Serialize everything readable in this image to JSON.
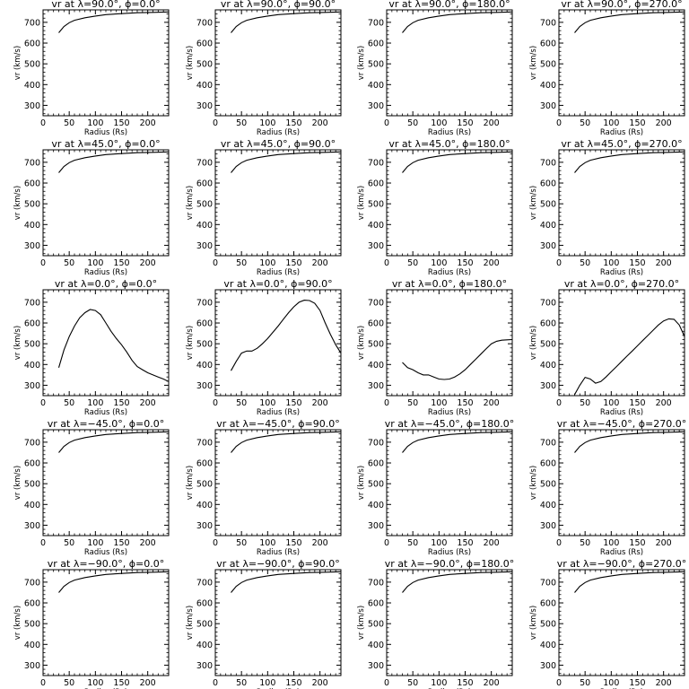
{
  "chart_data": [
    {
      "type": "line",
      "row": 0,
      "col": 0,
      "title": "vr at λ=90.0°, ϕ=0.0°",
      "xlabel": "Radius (Rs)",
      "ylabel": "vr (km/s)",
      "xlim": [
        0,
        240
      ],
      "ylim": [
        250,
        760
      ],
      "xticks": [
        0,
        50,
        100,
        150,
        200
      ],
      "yticks": [
        300,
        400,
        500,
        600,
        700
      ],
      "x": [
        30,
        40,
        50,
        60,
        80,
        100,
        120,
        150,
        180,
        210,
        240
      ],
      "y": [
        650,
        680,
        698,
        710,
        722,
        730,
        737,
        742,
        746,
        748,
        750
      ]
    },
    {
      "type": "line",
      "row": 0,
      "col": 1,
      "title": "vr at λ=90.0°, ϕ=90.0°",
      "xlabel": "Radius (Rs)",
      "ylabel": "vr (km/s)",
      "xlim": [
        0,
        240
      ],
      "ylim": [
        250,
        760
      ],
      "xticks": [
        0,
        50,
        100,
        150,
        200
      ],
      "yticks": [
        300,
        400,
        500,
        600,
        700
      ],
      "x": [
        30,
        40,
        50,
        60,
        80,
        100,
        120,
        150,
        180,
        210,
        240
      ],
      "y": [
        650,
        680,
        698,
        710,
        722,
        730,
        737,
        742,
        746,
        748,
        750
      ]
    },
    {
      "type": "line",
      "row": 0,
      "col": 2,
      "title": "vr at λ=90.0°, ϕ=180.0°",
      "xlabel": "Radius (Rs)",
      "ylabel": "vr (km/s)",
      "xlim": [
        0,
        240
      ],
      "ylim": [
        250,
        760
      ],
      "xticks": [
        0,
        50,
        100,
        150,
        200
      ],
      "yticks": [
        300,
        400,
        500,
        600,
        700
      ],
      "x": [
        30,
        40,
        50,
        60,
        80,
        100,
        120,
        150,
        180,
        210,
        240
      ],
      "y": [
        650,
        680,
        698,
        710,
        722,
        730,
        737,
        742,
        746,
        748,
        750
      ]
    },
    {
      "type": "line",
      "row": 0,
      "col": 3,
      "title": "vr at λ=90.0°, ϕ=270.0°",
      "xlabel": "Radius (Rs)",
      "ylabel": "vr (km/s)",
      "xlim": [
        0,
        240
      ],
      "ylim": [
        250,
        760
      ],
      "xticks": [
        0,
        50,
        100,
        150,
        200
      ],
      "yticks": [
        300,
        400,
        500,
        600,
        700
      ],
      "x": [
        30,
        40,
        50,
        60,
        80,
        100,
        120,
        150,
        180,
        210,
        240
      ],
      "y": [
        650,
        680,
        698,
        710,
        722,
        730,
        737,
        742,
        746,
        748,
        750
      ]
    },
    {
      "type": "line",
      "row": 1,
      "col": 0,
      "title": "vr at λ=45.0°, ϕ=0.0°",
      "xlabel": "Radius (Rs)",
      "ylabel": "vr (km/s)",
      "xlim": [
        0,
        240
      ],
      "ylim": [
        250,
        760
      ],
      "xticks": [
        0,
        50,
        100,
        150,
        200
      ],
      "yticks": [
        300,
        400,
        500,
        600,
        700
      ],
      "x": [
        30,
        40,
        50,
        60,
        80,
        100,
        120,
        150,
        180,
        210,
        240
      ],
      "y": [
        650,
        680,
        698,
        710,
        722,
        730,
        737,
        742,
        746,
        748,
        750
      ]
    },
    {
      "type": "line",
      "row": 1,
      "col": 1,
      "title": "vr at λ=45.0°, ϕ=90.0°",
      "xlabel": "Radius (Rs)",
      "ylabel": "vr (km/s)",
      "xlim": [
        0,
        240
      ],
      "ylim": [
        250,
        760
      ],
      "xticks": [
        0,
        50,
        100,
        150,
        200
      ],
      "yticks": [
        300,
        400,
        500,
        600,
        700
      ],
      "x": [
        30,
        40,
        50,
        60,
        80,
        100,
        120,
        150,
        180,
        210,
        240
      ],
      "y": [
        650,
        680,
        698,
        710,
        722,
        730,
        737,
        742,
        746,
        748,
        750
      ]
    },
    {
      "type": "line",
      "row": 1,
      "col": 2,
      "title": "vr at λ=45.0°, ϕ=180.0°",
      "xlabel": "Radius (Rs)",
      "ylabel": "vr (km/s)",
      "xlim": [
        0,
        240
      ],
      "ylim": [
        250,
        760
      ],
      "xticks": [
        0,
        50,
        100,
        150,
        200
      ],
      "yticks": [
        300,
        400,
        500,
        600,
        700
      ],
      "x": [
        30,
        40,
        50,
        60,
        80,
        100,
        120,
        150,
        180,
        210,
        240
      ],
      "y": [
        650,
        680,
        698,
        710,
        722,
        730,
        737,
        742,
        746,
        748,
        750
      ]
    },
    {
      "type": "line",
      "row": 1,
      "col": 3,
      "title": "vr at λ=45.0°, ϕ=270.0°",
      "xlabel": "Radius (Rs)",
      "ylabel": "vr (km/s)",
      "xlim": [
        0,
        240
      ],
      "ylim": [
        250,
        760
      ],
      "xticks": [
        0,
        50,
        100,
        150,
        200
      ],
      "yticks": [
        300,
        400,
        500,
        600,
        700
      ],
      "x": [
        30,
        40,
        50,
        60,
        80,
        100,
        120,
        150,
        180,
        210,
        240
      ],
      "y": [
        650,
        680,
        698,
        710,
        722,
        730,
        737,
        742,
        746,
        748,
        750
      ]
    },
    {
      "type": "line",
      "row": 2,
      "col": 0,
      "title": "vr at λ=0.0°, ϕ=0.0°",
      "xlabel": "Radius (Rs)",
      "ylabel": "vr (km/s)",
      "xlim": [
        0,
        240
      ],
      "ylim": [
        250,
        760
      ],
      "xticks": [
        0,
        50,
        100,
        150,
        200
      ],
      "yticks": [
        300,
        400,
        500,
        600,
        700
      ],
      "x": [
        30,
        40,
        50,
        60,
        70,
        80,
        90,
        100,
        110,
        120,
        130,
        140,
        150,
        160,
        170,
        180,
        190,
        200,
        210,
        220,
        230,
        240
      ],
      "y": [
        385,
        470,
        535,
        585,
        625,
        650,
        665,
        660,
        640,
        600,
        560,
        525,
        495,
        460,
        420,
        390,
        375,
        360,
        350,
        340,
        330,
        318
      ]
    },
    {
      "type": "line",
      "row": 2,
      "col": 1,
      "title": "vr at λ=0.0°, ϕ=90.0°",
      "xlabel": "Radius (Rs)",
      "ylabel": "vr (km/s)",
      "xlim": [
        0,
        240
      ],
      "ylim": [
        250,
        760
      ],
      "xticks": [
        0,
        50,
        100,
        150,
        200
      ],
      "yticks": [
        300,
        400,
        500,
        600,
        700
      ],
      "x": [
        30,
        40,
        50,
        60,
        70,
        80,
        90,
        100,
        110,
        120,
        130,
        140,
        150,
        160,
        170,
        180,
        190,
        200,
        210,
        220,
        230,
        240
      ],
      "y": [
        370,
        415,
        455,
        465,
        465,
        478,
        500,
        525,
        555,
        585,
        618,
        650,
        678,
        700,
        710,
        708,
        695,
        660,
        600,
        545,
        495,
        455
      ]
    },
    {
      "type": "line",
      "row": 2,
      "col": 2,
      "title": "vr at λ=0.0°, ϕ=180.0°",
      "xlabel": "Radius (Rs)",
      "ylabel": "vr (km/s)",
      "xlim": [
        0,
        240
      ],
      "ylim": [
        250,
        760
      ],
      "xticks": [
        0,
        50,
        100,
        150,
        200
      ],
      "yticks": [
        300,
        400,
        500,
        600,
        700
      ],
      "x": [
        30,
        40,
        50,
        60,
        70,
        80,
        90,
        100,
        110,
        120,
        130,
        140,
        150,
        160,
        170,
        180,
        190,
        200,
        210,
        220,
        230,
        240
      ],
      "y": [
        410,
        385,
        375,
        360,
        350,
        350,
        340,
        330,
        328,
        330,
        340,
        355,
        375,
        400,
        425,
        450,
        475,
        500,
        512,
        517,
        519,
        520
      ]
    },
    {
      "type": "line",
      "row": 2,
      "col": 3,
      "title": "vr at λ=0.0°, ϕ=270.0°",
      "xlabel": "Radius (Rs)",
      "ylabel": "vr (km/s)",
      "xlim": [
        0,
        240
      ],
      "ylim": [
        250,
        760
      ],
      "xticks": [
        0,
        50,
        100,
        150,
        200
      ],
      "yticks": [
        300,
        400,
        500,
        600,
        700
      ],
      "x": [
        30,
        40,
        50,
        60,
        70,
        80,
        90,
        100,
        110,
        120,
        130,
        140,
        150,
        160,
        170,
        180,
        190,
        200,
        210,
        220,
        230,
        240
      ],
      "y": [
        255,
        300,
        338,
        330,
        310,
        318,
        340,
        365,
        390,
        415,
        440,
        465,
        490,
        515,
        540,
        565,
        590,
        610,
        620,
        618,
        590,
        535
      ]
    },
    {
      "type": "line",
      "row": 3,
      "col": 0,
      "title": "vr at λ=−45.0°, ϕ=0.0°",
      "xlabel": "Radius (Rs)",
      "ylabel": "vr (km/s)",
      "xlim": [
        0,
        240
      ],
      "ylim": [
        250,
        760
      ],
      "xticks": [
        0,
        50,
        100,
        150,
        200
      ],
      "yticks": [
        300,
        400,
        500,
        600,
        700
      ],
      "x": [
        30,
        40,
        50,
        60,
        80,
        100,
        120,
        150,
        180,
        210,
        240
      ],
      "y": [
        650,
        680,
        698,
        710,
        722,
        730,
        737,
        742,
        746,
        748,
        750
      ]
    },
    {
      "type": "line",
      "row": 3,
      "col": 1,
      "title": "vr at λ=−45.0°, ϕ=90.0°",
      "xlabel": "Radius (Rs)",
      "ylabel": "vr (km/s)",
      "xlim": [
        0,
        240
      ],
      "ylim": [
        250,
        760
      ],
      "xticks": [
        0,
        50,
        100,
        150,
        200
      ],
      "yticks": [
        300,
        400,
        500,
        600,
        700
      ],
      "x": [
        30,
        40,
        50,
        60,
        80,
        100,
        120,
        150,
        180,
        210,
        240
      ],
      "y": [
        650,
        680,
        698,
        710,
        722,
        730,
        737,
        742,
        746,
        748,
        750
      ]
    },
    {
      "type": "line",
      "row": 3,
      "col": 2,
      "title": "vr at λ=−45.0°, ϕ=180.0°",
      "xlabel": "Radius (Rs)",
      "ylabel": "vr (km/s)",
      "xlim": [
        0,
        240
      ],
      "ylim": [
        250,
        760
      ],
      "xticks": [
        0,
        50,
        100,
        150,
        200
      ],
      "yticks": [
        300,
        400,
        500,
        600,
        700
      ],
      "x": [
        30,
        40,
        50,
        60,
        80,
        100,
        120,
        150,
        180,
        210,
        240
      ],
      "y": [
        650,
        680,
        698,
        710,
        722,
        730,
        737,
        742,
        746,
        748,
        750
      ]
    },
    {
      "type": "line",
      "row": 3,
      "col": 3,
      "title": "vr at λ=−45.0°, ϕ=270.0°",
      "xlabel": "Radius (Rs)",
      "ylabel": "vr (km/s)",
      "xlim": [
        0,
        240
      ],
      "ylim": [
        250,
        760
      ],
      "xticks": [
        0,
        50,
        100,
        150,
        200
      ],
      "yticks": [
        300,
        400,
        500,
        600,
        700
      ],
      "x": [
        30,
        40,
        50,
        60,
        80,
        100,
        120,
        150,
        180,
        210,
        240
      ],
      "y": [
        650,
        680,
        698,
        710,
        722,
        730,
        737,
        742,
        746,
        748,
        750
      ]
    },
    {
      "type": "line",
      "row": 4,
      "col": 0,
      "title": "vr at λ=−90.0°, ϕ=0.0°",
      "xlabel": "Radius (Rs)",
      "ylabel": "vr (km/s)",
      "xlim": [
        0,
        240
      ],
      "ylim": [
        250,
        760
      ],
      "xticks": [
        0,
        50,
        100,
        150,
        200
      ],
      "yticks": [
        300,
        400,
        500,
        600,
        700
      ],
      "x": [
        30,
        40,
        50,
        60,
        80,
        100,
        120,
        150,
        180,
        210,
        240
      ],
      "y": [
        650,
        680,
        698,
        710,
        722,
        730,
        737,
        742,
        746,
        748,
        750
      ]
    },
    {
      "type": "line",
      "row": 4,
      "col": 1,
      "title": "vr at λ=−90.0°, ϕ=90.0°",
      "xlabel": "Radius (Rs)",
      "ylabel": "vr (km/s)",
      "xlim": [
        0,
        240
      ],
      "ylim": [
        250,
        760
      ],
      "xticks": [
        0,
        50,
        100,
        150,
        200
      ],
      "yticks": [
        300,
        400,
        500,
        600,
        700
      ],
      "x": [
        30,
        40,
        50,
        60,
        80,
        100,
        120,
        150,
        180,
        210,
        240
      ],
      "y": [
        650,
        680,
        698,
        710,
        722,
        730,
        737,
        742,
        746,
        748,
        750
      ]
    },
    {
      "type": "line",
      "row": 4,
      "col": 2,
      "title": "vr at λ=−90.0°, ϕ=180.0°",
      "xlabel": "Radius (Rs)",
      "ylabel": "vr (km/s)",
      "xlim": [
        0,
        240
      ],
      "ylim": [
        250,
        760
      ],
      "xticks": [
        0,
        50,
        100,
        150,
        200
      ],
      "yticks": [
        300,
        400,
        500,
        600,
        700
      ],
      "x": [
        30,
        40,
        50,
        60,
        80,
        100,
        120,
        150,
        180,
        210,
        240
      ],
      "y": [
        650,
        680,
        698,
        710,
        722,
        730,
        737,
        742,
        746,
        748,
        750
      ]
    },
    {
      "type": "line",
      "row": 4,
      "col": 3,
      "title": "vr at λ=−90.0°, ϕ=270.0°",
      "xlabel": "Radius (Rs)",
      "ylabel": "vr (km/s)",
      "xlim": [
        0,
        240
      ],
      "ylim": [
        250,
        760
      ],
      "xticks": [
        0,
        50,
        100,
        150,
        200
      ],
      "yticks": [
        300,
        400,
        500,
        600,
        700
      ],
      "x": [
        30,
        40,
        50,
        60,
        80,
        100,
        120,
        150,
        180,
        210,
        240
      ],
      "y": [
        650,
        680,
        698,
        710,
        722,
        730,
        737,
        742,
        746,
        748,
        750
      ]
    }
  ]
}
